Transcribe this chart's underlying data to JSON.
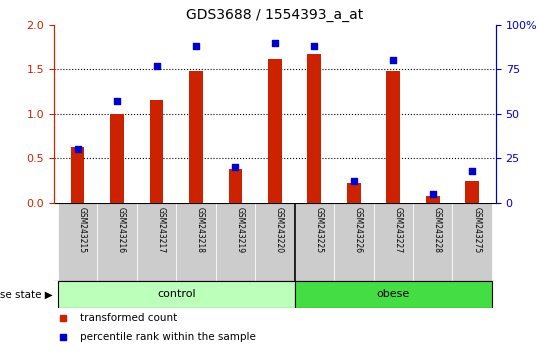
{
  "title": "GDS3688 / 1554393_a_at",
  "samples": [
    "GSM243215",
    "GSM243216",
    "GSM243217",
    "GSM243218",
    "GSM243219",
    "GSM243220",
    "GSM243225",
    "GSM243226",
    "GSM243227",
    "GSM243228",
    "GSM243275"
  ],
  "transformed_count": [
    0.63,
    1.0,
    1.15,
    1.48,
    0.38,
    1.62,
    1.67,
    0.22,
    1.48,
    0.08,
    0.25
  ],
  "percentile_rank": [
    0.3,
    0.57,
    0.77,
    0.88,
    0.2,
    0.9,
    0.88,
    0.12,
    0.8,
    0.05,
    0.18
  ],
  "groups": [
    {
      "label": "control",
      "start": 0,
      "end": 6,
      "color": "#bbffbb"
    },
    {
      "label": "obese",
      "start": 6,
      "end": 11,
      "color": "#44dd44"
    }
  ],
  "ylim_left": [
    0,
    2.0
  ],
  "ylim_right": [
    0,
    100
  ],
  "yticks_left": [
    0,
    0.5,
    1.0,
    1.5,
    2.0
  ],
  "yticks_right": [
    0,
    25,
    50,
    75,
    100
  ],
  "bar_color_red": "#cc2200",
  "square_color_blue": "#0000cc",
  "axis_color_left": "#cc2200",
  "axis_color_right": "#0000cc",
  "tick_area_bg": "#cccccc",
  "disease_state_label": "disease state",
  "legend_items": [
    "transformed count",
    "percentile rank within the sample"
  ]
}
